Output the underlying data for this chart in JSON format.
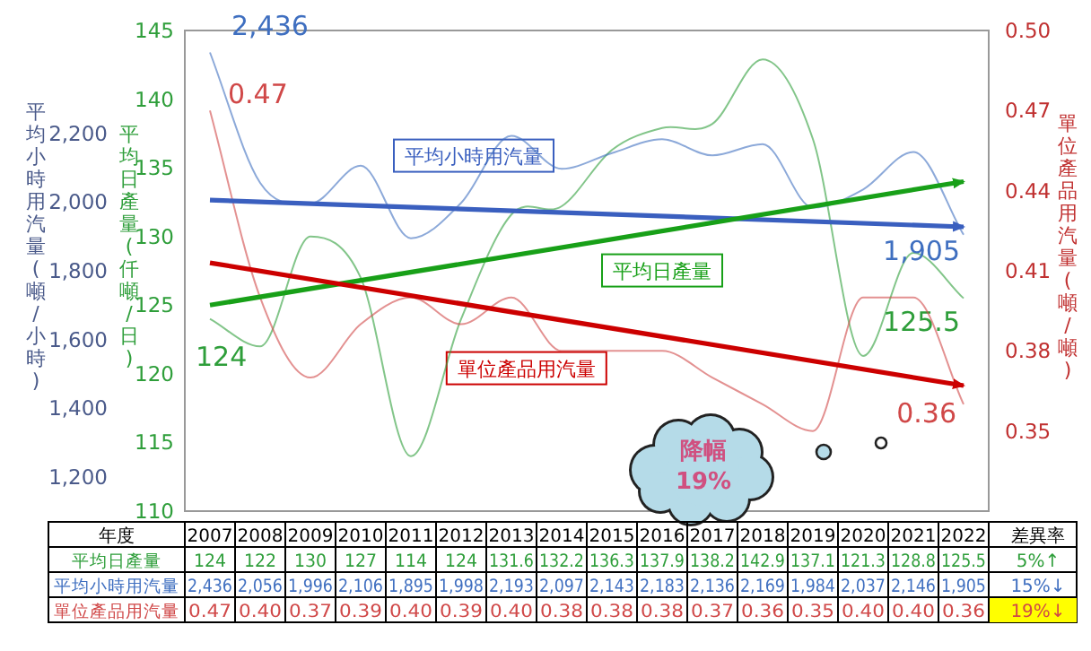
{
  "chart_data": {
    "type": "line",
    "categories": [
      "2007",
      "2008",
      "2009",
      "2010",
      "2011",
      "2012",
      "2013",
      "2014",
      "2015",
      "2016",
      "2017",
      "2018",
      "2019",
      "2020",
      "2021",
      "2022"
    ],
    "xlabel": "年度",
    "ylabel": "平均小時用汽量(噸/小時)",
    "y2label": "平均日產量(仟噸/日)",
    "y3label": "單位產品用汽量(噸/噸)",
    "ylim": [
      1100,
      2500
    ],
    "yticks": [
      {
        "value": 1200,
        "label": "1,200"
      },
      {
        "value": 1400,
        "label": "1,400"
      },
      {
        "value": 1600,
        "label": "1,600"
      },
      {
        "value": 1800,
        "label": "1,800"
      },
      {
        "value": 2000,
        "label": "2,000"
      },
      {
        "value": 2200,
        "label": "2,200"
      }
    ],
    "y2lim": [
      110,
      145
    ],
    "y2ticks": [
      110,
      115,
      120,
      125,
      130,
      135,
      140,
      145
    ],
    "y3lim": [
      0.32,
      0.5
    ],
    "y3ticks": [
      0.35,
      0.38,
      0.41,
      0.44,
      0.47,
      {
        "value": 0.5,
        "label": "0.50"
      }
    ],
    "grid": false,
    "legend": false,
    "marker": "none",
    "line_style": "solid",
    "series": [
      {
        "name": "平均日產量",
        "color": "#2e9e3a",
        "axis": "y2",
        "values": [
          124,
          122,
          130,
          127,
          114,
          124,
          131.6,
          132.2,
          136.3,
          137.9,
          138.2,
          142.9,
          137.1,
          121.3,
          128.8,
          125.5
        ],
        "value_labels": [
          "124",
          "122",
          "130",
          "127",
          "114",
          "124",
          "131.6",
          "132.2",
          "136.3",
          "137.9",
          "138.2",
          "142.9",
          "137.1",
          "121.3",
          "128.8",
          "125.5"
        ]
      },
      {
        "name": "平均小時用汽量",
        "color": "#3f6fc0",
        "axis": "y",
        "values": [
          2436,
          2056,
          1996,
          2106,
          1895,
          1998,
          2193,
          2097,
          2143,
          2183,
          2136,
          2169,
          1984,
          2037,
          2146,
          1905
        ],
        "value_labels": [
          "2,436",
          "2,056",
          "1,996",
          "2,106",
          "1,895",
          "1,998",
          "2,193",
          "2,097",
          "2,143",
          "2,183",
          "2,136",
          "2,169",
          "1,984",
          "2,037",
          "2,146",
          "1,905"
        ]
      },
      {
        "name": "單位產品用汽量",
        "color": "#d04848",
        "axis": "y3",
        "values": [
          0.47,
          0.4,
          0.37,
          0.39,
          0.4,
          0.39,
          0.4,
          0.38,
          0.38,
          0.38,
          0.37,
          0.36,
          0.35,
          0.4,
          0.4,
          0.36
        ],
        "value_labels": [
          "0.47",
          "0.40",
          "0.37",
          "0.39",
          "0.40",
          "0.39",
          "0.40",
          "0.38",
          "0.38",
          "0.38",
          "0.37",
          "0.36",
          "0.35",
          "0.40",
          "0.40",
          "0.36"
        ]
      },
      {
        "name": "平均小時用汽量",
        "type": "line",
        "color": "#3a5fbf",
        "axis": "y",
        "values": [
          2006,
          null,
          null,
          null,
          null,
          null,
          null,
          null,
          null,
          null,
          null,
          null,
          null,
          null,
          null,
          1928
        ]
      },
      {
        "name": "平均日產量",
        "type": "line",
        "color": "#18a018",
        "axis": "y2",
        "values": [
          125.0,
          null,
          null,
          null,
          null,
          null,
          null,
          null,
          null,
          null,
          null,
          null,
          null,
          null,
          null,
          134.0
        ]
      },
      {
        "name": "單位產品用汽量",
        "type": "line",
        "color": "#cc0000",
        "axis": "y3",
        "values": [
          0.413,
          null,
          null,
          null,
          null,
          null,
          null,
          null,
          null,
          null,
          null,
          null,
          null,
          null,
          null,
          0.367
        ]
      }
    ],
    "annotations": [
      "差異率",
      "5%↑",
      "15%↓",
      "19%↓",
      "降幅 19%"
    ]
  }
}
